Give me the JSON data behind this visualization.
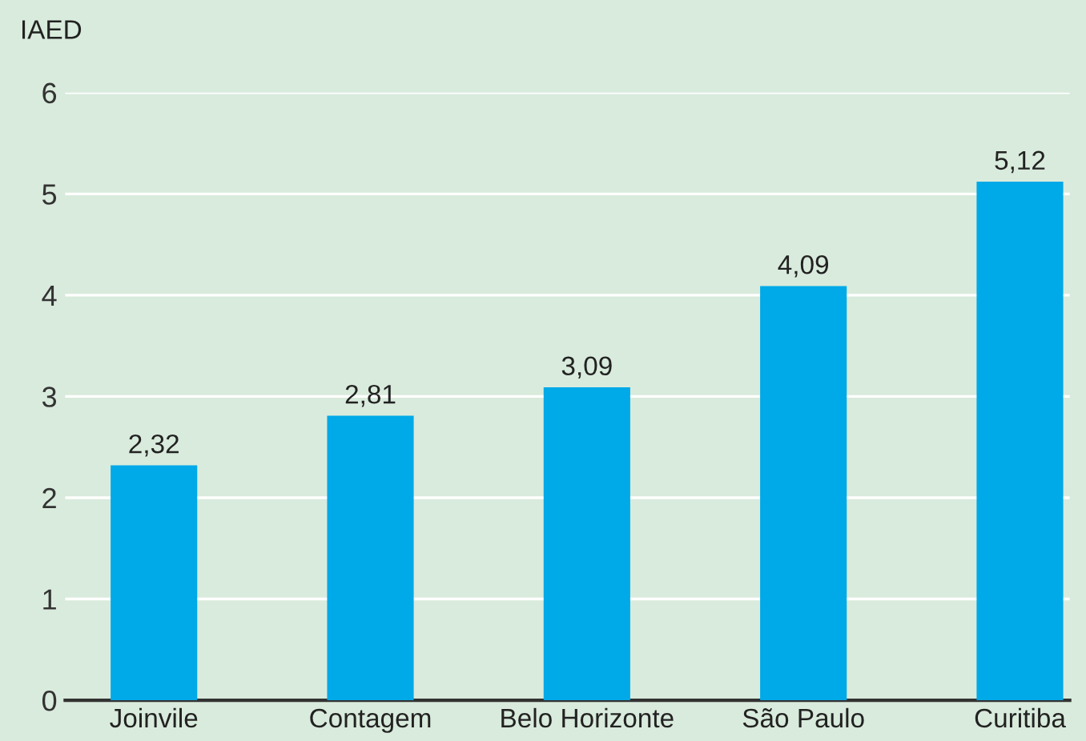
{
  "chart_data": {
    "type": "bar",
    "ylabel": "IAED",
    "categories": [
      "Joinvile",
      "Contagem",
      "Belo Horizonte",
      "São Paulo",
      "Curitiba"
    ],
    "values": [
      2.32,
      2.81,
      3.09,
      4.09,
      5.12
    ],
    "value_labels": [
      "2,32",
      "2,81",
      "3,09",
      "4,09",
      "5,12"
    ],
    "color": "#00a9e8",
    "ylim": [
      0,
      6
    ],
    "yticks": [
      0,
      1,
      2,
      3,
      4,
      5,
      6
    ],
    "grid": "y"
  }
}
